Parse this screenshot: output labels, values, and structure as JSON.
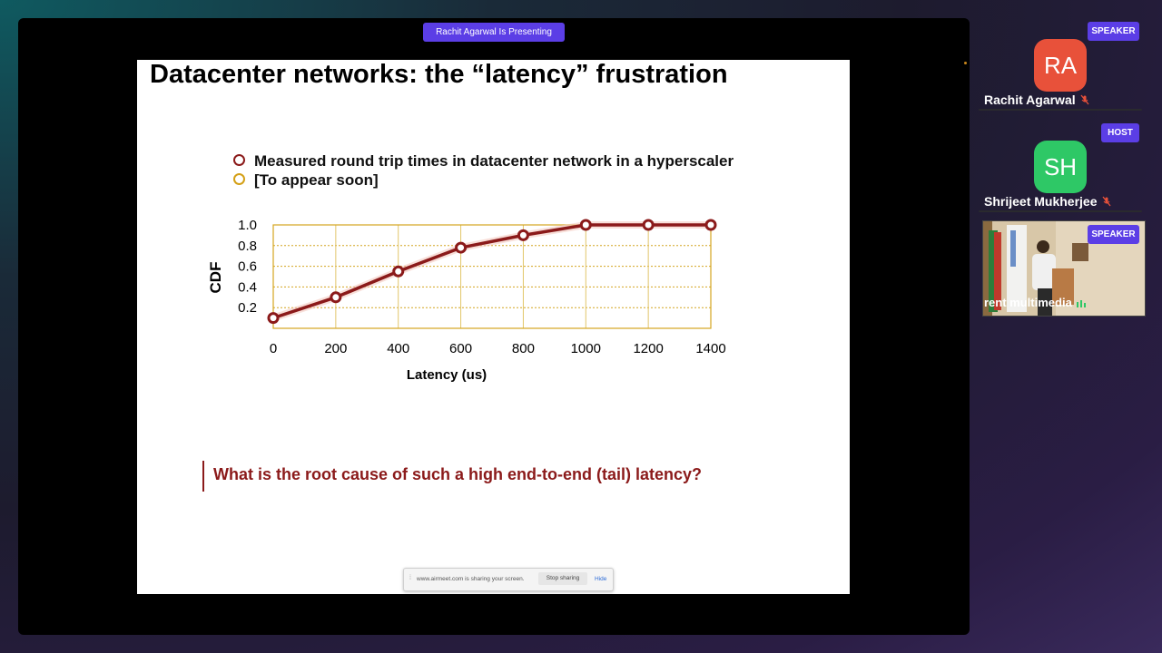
{
  "presenting_label": "Rachit Agarwal Is Presenting",
  "slide": {
    "title": "Datacenter networks: the “latency” frustration",
    "legend": [
      {
        "label": "Measured round trip times in datacenter network in a hyperscaler",
        "color": "#8b1a1a"
      },
      {
        "label": "[To appear soon]",
        "color": "#d4a017"
      }
    ],
    "question": "What is the root cause of such a high end-to-end (tail) latency?"
  },
  "chart_data": {
    "type": "line",
    "xlabel": "Latency (us)",
    "ylabel": "CDF",
    "x_ticks": [
      "0",
      "200",
      "400",
      "600",
      "800",
      "1000",
      "1200",
      "1400"
    ],
    "y_ticks": [
      "0.2",
      "0.4",
      "0.6",
      "0.8",
      "1.0"
    ],
    "xlim": [
      0,
      1400
    ],
    "ylim": [
      0,
      1.0
    ],
    "grid": true,
    "series": [
      {
        "name": "Measured round trip times in datacenter network in a hyperscaler",
        "color": "#8b1a1a",
        "x": [
          0,
          200,
          400,
          600,
          800,
          1000,
          1200,
          1400
        ],
        "y": [
          0.1,
          0.3,
          0.55,
          0.78,
          0.9,
          1.0,
          1.0,
          1.0
        ]
      }
    ]
  },
  "share_bar": {
    "message": "www.airmeet.com is sharing your screen.",
    "stop_label": "Stop sharing",
    "hide_label": "Hide"
  },
  "participants": [
    {
      "role": "SPEAKER",
      "initials": "RA",
      "name": "Rachit Agarwal",
      "avatar_color": "#e8513a",
      "mic": "muted"
    },
    {
      "role": "HOST",
      "initials": "SH",
      "name": "Shrijeet Mukherjee",
      "avatar_color": "#2ec866",
      "mic": "muted"
    },
    {
      "role": "SPEAKER",
      "name": "rent multimedia",
      "type": "video"
    }
  ],
  "colors": {
    "accent": "#5b3ee6",
    "mute_red": "#e8513a"
  }
}
